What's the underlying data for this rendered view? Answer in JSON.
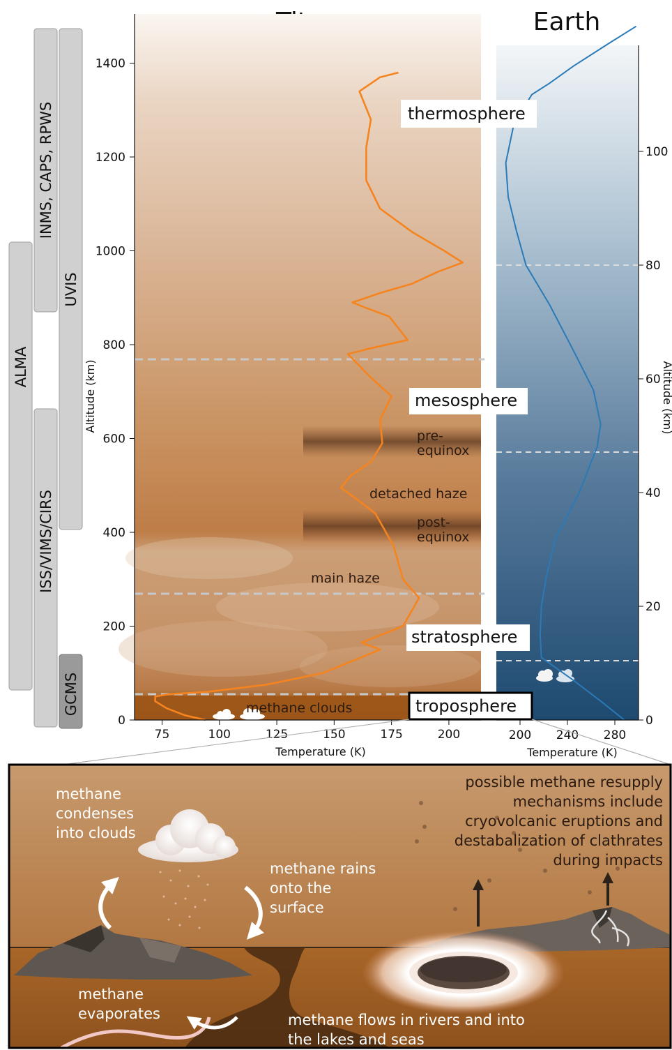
{
  "titles": {
    "titan": "Titan",
    "earth": "Earth"
  },
  "instruments": [
    {
      "label": "INMS, CAPS, RPWS"
    },
    {
      "label": "UVIS"
    },
    {
      "label": "ALMA"
    },
    {
      "label": "ISS/VIMS/CIRS"
    },
    {
      "label": "GCMS"
    }
  ],
  "titan_axis": {
    "ylabel": "Altitude (km)",
    "xlabel": "Temperature (K)",
    "yticks": [
      "0",
      "200",
      "400",
      "600",
      "800",
      "1000",
      "1200",
      "1400"
    ],
    "xticks": [
      "75",
      "100",
      "125",
      "150",
      "175",
      "200"
    ]
  },
  "earth_axis": {
    "ylabel": "Altitude (km)",
    "xlabel": "Temperature (K)",
    "yticks": [
      "0",
      "20",
      "40",
      "60",
      "80",
      "100"
    ],
    "xticks": [
      "200",
      "240",
      "280"
    ]
  },
  "layers": {
    "thermosphere": "thermosphere",
    "mesosphere": "mesosphere",
    "stratosphere": "stratosphere",
    "troposphere": "troposphere"
  },
  "annotations": {
    "pre_equinox_1": "pre-",
    "pre_equinox_2": "equinox",
    "detached_haze": "detached haze",
    "post_equinox_1": "post-",
    "post_equinox_2": "equinox",
    "main_haze": "main haze",
    "methane_clouds": "methane clouds"
  },
  "cycle": {
    "condenses": [
      "methane",
      "condenses",
      "into clouds"
    ],
    "rains": [
      "methane rains",
      "onto the",
      "surface"
    ],
    "evaporates": [
      "methane",
      "evaporates"
    ],
    "flows": [
      "methane flows in rivers and into",
      "the lakes and seas"
    ],
    "resupply": [
      "possible methane resupply",
      "mechanisms include",
      "cryovolcanic eruptions and",
      "destabalization of clathrates",
      "during impacts"
    ]
  },
  "chart_data": [
    {
      "type": "line",
      "title": "Titan",
      "xlabel": "Temperature (K)",
      "ylabel": "Altitude (km)",
      "xlim": [
        63,
        214
      ],
      "ylim": [
        0,
        1450
      ],
      "series": [
        {
          "points": [
            [
              94,
              0
            ],
            [
              85,
              10
            ],
            [
              77,
              25
            ],
            [
              72,
              40
            ],
            [
              72,
              50
            ],
            [
              78,
              55
            ],
            [
              95,
              60
            ],
            [
              120,
              75
            ],
            [
              145,
              100
            ],
            [
              165,
              140
            ],
            [
              170,
              150
            ],
            [
              162,
              165
            ],
            [
              180,
              200
            ],
            [
              187,
              260
            ],
            [
              180,
              300
            ],
            [
              176,
              370
            ],
            [
              168,
              440
            ],
            [
              160,
              470
            ],
            [
              153,
              495
            ],
            [
              157,
              520
            ],
            [
              166,
              550
            ],
            [
              171,
              590
            ],
            [
              170,
              640
            ],
            [
              175,
              690
            ],
            [
              166,
              730
            ],
            [
              160,
              760
            ],
            [
              156,
              780
            ],
            [
              164,
              790
            ],
            [
              182,
              810
            ],
            [
              174,
              860
            ],
            [
              163,
              880
            ],
            [
              158,
              890
            ],
            [
              170,
              910
            ],
            [
              184,
              930
            ],
            [
              195,
              955
            ],
            [
              206,
              975
            ],
            [
              198,
              1000
            ],
            [
              184,
              1040
            ],
            [
              170,
              1090
            ],
            [
              164,
              1150
            ],
            [
              164,
              1220
            ],
            [
              166,
              1280
            ],
            [
              161,
              1340
            ],
            [
              170,
              1370
            ],
            [
              178,
              1380
            ]
          ],
          "color": "#F5841F"
        }
      ]
    },
    {
      "type": "line",
      "title": "Earth",
      "xlabel": "Temperature (K)",
      "ylabel": "Altitude (km)",
      "xlim": [
        180,
        300
      ],
      "ylim": [
        0,
        120
      ],
      "series": [
        {
          "points": [
            [
              288,
              0
            ],
            [
              270,
              3
            ],
            [
              245,
              7
            ],
            [
              218,
              11
            ],
            [
              217,
              15
            ],
            [
              218,
              20
            ],
            [
              222,
              25
            ],
            [
              230,
              32
            ],
            [
              250,
              40
            ],
            [
              265,
              48
            ],
            [
              268,
              52
            ],
            [
              262,
              58
            ],
            [
              245,
              65
            ],
            [
              225,
              73
            ],
            [
              205,
              80
            ],
            [
              197,
              86
            ],
            [
              190,
              92
            ],
            [
              188,
              98
            ],
            [
              195,
              105
            ],
            [
              210,
              110
            ],
            [
              225,
              112
            ],
            [
              245,
              115
            ],
            [
              275,
              119
            ],
            [
              298,
              122
            ]
          ],
          "color": "#2A7AB8"
        }
      ]
    }
  ]
}
